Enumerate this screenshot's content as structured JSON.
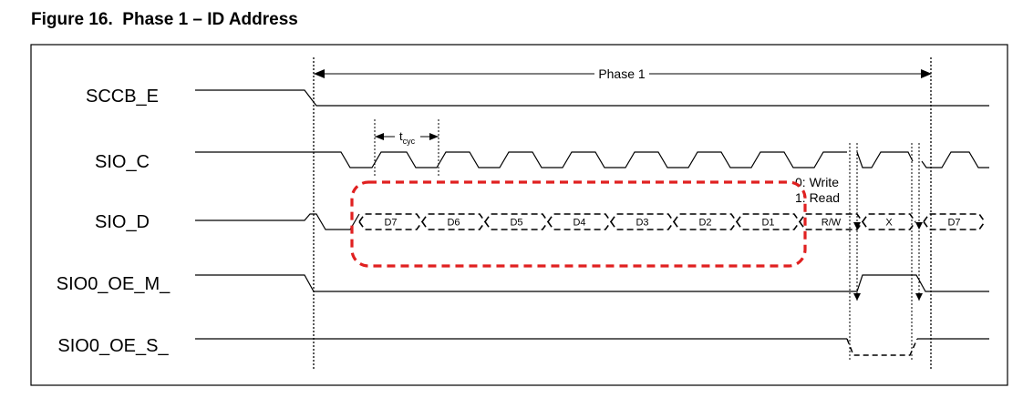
{
  "figure": {
    "title": "Figure 16.  Phase 1 – ID Address"
  },
  "signals": {
    "sccb_e": "SCCB_E",
    "sio_c": "SIO_C",
    "sio_d": "SIO_D",
    "sio0_oe_m": "SIO0_OE_M_",
    "sio0_oe_s": "SIO0_OE_S_"
  },
  "annotations": {
    "phase_label": "Phase 1",
    "tcyc_t": "t",
    "tcyc_sub": "cyc",
    "rw_note_write": "0: Write",
    "rw_note_read": "1: Read"
  },
  "data_bits": [
    "D7",
    "D6",
    "D5",
    "D4",
    "D3",
    "D2",
    "D1",
    "R/W",
    "X",
    "D7"
  ],
  "colors": {
    "line": "#000000",
    "highlight": "#e02020"
  }
}
